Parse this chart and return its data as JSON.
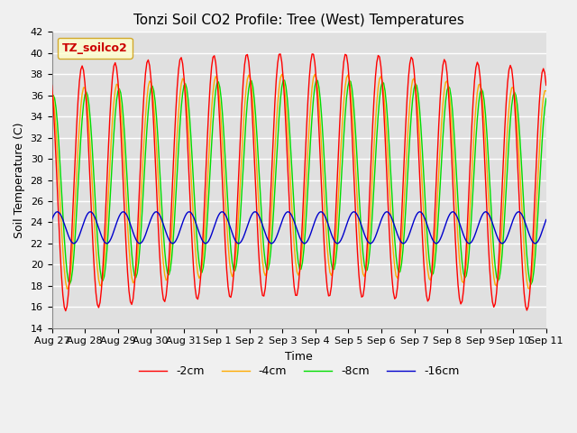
{
  "title": "Tonzi Soil CO2 Profile: Tree (West) Temperatures",
  "xlabel": "Time",
  "ylabel": "Soil Temperature (C)",
  "ylim": [
    14,
    42
  ],
  "legend_label": "TZ_soilco2",
  "series_labels": [
    "-2cm",
    "-4cm",
    "-8cm",
    "-16cm"
  ],
  "series_colors": [
    "#ff0000",
    "#ffaa00",
    "#00dd00",
    "#0000cc"
  ],
  "xtick_labels": [
    "Aug 27",
    "Aug 28",
    "Aug 29",
    "Aug 30",
    "Aug 31",
    "Sep 1",
    "Sep 2",
    "Sep 3",
    "Sep 4",
    "Sep 5",
    "Sep 6",
    "Sep 7",
    "Sep 8",
    "Sep 9",
    "Sep 10",
    "Sep 11"
  ],
  "plot_bg_color": "#e0e0e0",
  "fig_bg_color": "#f0f0f0",
  "grid_color": "#ffffff",
  "title_fontsize": 11,
  "axis_fontsize": 9,
  "tick_fontsize": 8,
  "legend_fontsize": 9
}
